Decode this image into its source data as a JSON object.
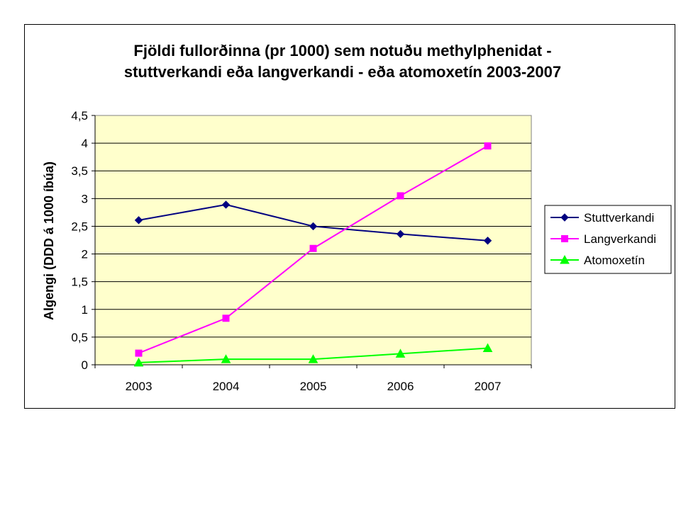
{
  "chart_data": {
    "type": "line",
    "title_lines": [
      "Fjöldi fullorðinna (pr 1000) sem notuðu  methylphenidat -",
      "stuttverkandi eða langverkandi -  eða atomoxetín  2003-2007"
    ],
    "xlabel": "",
    "ylabel": "Algengi (DDD á 1000 íbúa)",
    "categories": [
      "2003",
      "2004",
      "2005",
      "2006",
      "2007"
    ],
    "ylim": [
      0,
      4.5
    ],
    "ytick_labels": [
      "0",
      "0,5",
      "1",
      "1,5",
      "2",
      "2,5",
      "3",
      "3,5",
      "4",
      "4,5"
    ],
    "grid": true,
    "plot_background": "#FFFFCC",
    "legend_position": "right",
    "series": [
      {
        "name": "Stuttverkandi",
        "color": "#000080",
        "marker": "diamond",
        "values": [
          2.61,
          2.89,
          2.5,
          2.36,
          2.24
        ]
      },
      {
        "name": "Langverkandi",
        "color": "#FF00FF",
        "marker": "square",
        "values": [
          0.21,
          0.84,
          2.1,
          3.05,
          3.95
        ]
      },
      {
        "name": "Atomoxetín",
        "color": "#00FF00",
        "marker": "triangle",
        "values": [
          0.04,
          0.1,
          0.1,
          0.2,
          0.3
        ]
      }
    ]
  }
}
